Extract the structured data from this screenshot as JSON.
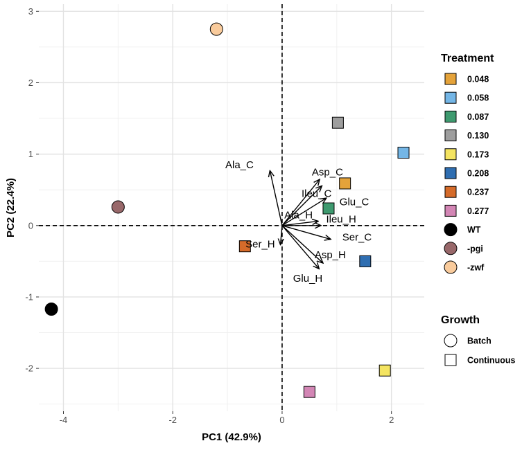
{
  "chart_data": {
    "type": "scatter",
    "subtype": "PCA biplot",
    "xlabel": "PC1 (42.9%)",
    "ylabel": "PC2 (22.4%)",
    "xlim": [
      -4.45,
      2.6
    ],
    "ylim": [
      -2.6,
      3.1
    ],
    "xticks": [
      -4,
      -2,
      0,
      2
    ],
    "yticks": [
      -2,
      -1,
      0,
      1,
      2,
      3
    ],
    "grid": true,
    "reference_lines": {
      "x": 0,
      "y": 0,
      "style": "dashed"
    },
    "points": [
      {
        "label": "0.048",
        "growth": "Continuous",
        "x": 1.15,
        "y": 0.59,
        "color": "#E5A33A"
      },
      {
        "label": "0.058",
        "growth": "Continuous",
        "x": 2.22,
        "y": 1.02,
        "color": "#74B6E6"
      },
      {
        "label": "0.087",
        "growth": "Continuous",
        "x": 0.85,
        "y": 0.24,
        "color": "#3E9A6F"
      },
      {
        "label": "0.130",
        "growth": "Continuous",
        "x": 1.02,
        "y": 1.44,
        "color": "#9E9E9E"
      },
      {
        "label": "0.173",
        "growth": "Continuous",
        "x": 1.88,
        "y": -2.03,
        "color": "#F4E461"
      },
      {
        "label": "0.208",
        "growth": "Continuous",
        "x": 1.52,
        "y": -0.5,
        "color": "#2F6EB1"
      },
      {
        "label": "0.237",
        "growth": "Continuous",
        "x": -0.68,
        "y": -0.29,
        "color": "#D56B2A"
      },
      {
        "label": "0.277",
        "growth": "Continuous",
        "x": 0.5,
        "y": -2.33,
        "color": "#D386B5"
      },
      {
        "label": "WT",
        "growth": "Batch",
        "x": -4.22,
        "y": -1.17,
        "color": "#000000"
      },
      {
        "label": "-pgi",
        "growth": "Batch",
        "x": -3.0,
        "y": 0.26,
        "color": "#98686A"
      },
      {
        "label": "-zwf",
        "growth": "Batch",
        "x": -1.2,
        "y": 2.75,
        "color": "#F9CB9C"
      }
    ],
    "loadings": [
      {
        "name": "Ala_C",
        "x": -0.22,
        "y": 0.76,
        "label_x": -0.78,
        "label_y": 0.85
      },
      {
        "name": "Asp_C",
        "x": 0.68,
        "y": 0.64,
        "label_x": 0.83,
        "label_y": 0.75
      },
      {
        "name": "Ileu_C",
        "x": 0.72,
        "y": 0.55,
        "label_x": 0.63,
        "label_y": 0.45
      },
      {
        "name": "Glu_C",
        "x": 0.8,
        "y": 0.38,
        "label_x": 1.32,
        "label_y": 0.33
      },
      {
        "name": "Ala_H",
        "x": 0.65,
        "y": 0.06,
        "label_x": 0.3,
        "label_y": 0.15
      },
      {
        "name": "Ileu_H",
        "x": 0.7,
        "y": 0.0,
        "label_x": 1.08,
        "label_y": 0.09
      },
      {
        "name": "Ser_C",
        "x": 0.88,
        "y": -0.19,
        "label_x": 1.37,
        "label_y": -0.16
      },
      {
        "name": "Ser_H",
        "x": -0.03,
        "y": -0.26,
        "label_x": -0.4,
        "label_y": -0.26
      },
      {
        "name": "Asp_H",
        "x": 0.74,
        "y": -0.52,
        "label_x": 0.88,
        "label_y": -0.41
      },
      {
        "name": "Glu_H",
        "x": 0.67,
        "y": -0.6,
        "label_x": 0.47,
        "label_y": -0.74
      }
    ],
    "legend": {
      "position": "right",
      "treatment": {
        "title": "Treatment",
        "items": [
          {
            "label": "0.048",
            "shape": "square",
            "color": "#E5A33A"
          },
          {
            "label": "0.058",
            "shape": "square",
            "color": "#74B6E6"
          },
          {
            "label": "0.087",
            "shape": "square",
            "color": "#3E9A6F"
          },
          {
            "label": "0.130",
            "shape": "square",
            "color": "#9E9E9E"
          },
          {
            "label": "0.173",
            "shape": "square",
            "color": "#F4E461"
          },
          {
            "label": "0.208",
            "shape": "square",
            "color": "#2F6EB1"
          },
          {
            "label": "0.237",
            "shape": "square",
            "color": "#D56B2A"
          },
          {
            "label": "0.277",
            "shape": "square",
            "color": "#D386B5"
          },
          {
            "label": "WT",
            "shape": "circle",
            "color": "#000000"
          },
          {
            "label": "-pgi",
            "shape": "circle",
            "color": "#98686A"
          },
          {
            "label": "-zwf",
            "shape": "circle",
            "color": "#F9CB9C"
          }
        ]
      },
      "growth": {
        "title": "Growth",
        "items": [
          {
            "label": "Batch",
            "shape": "circle"
          },
          {
            "label": "Continuous",
            "shape": "square"
          }
        ]
      }
    }
  }
}
